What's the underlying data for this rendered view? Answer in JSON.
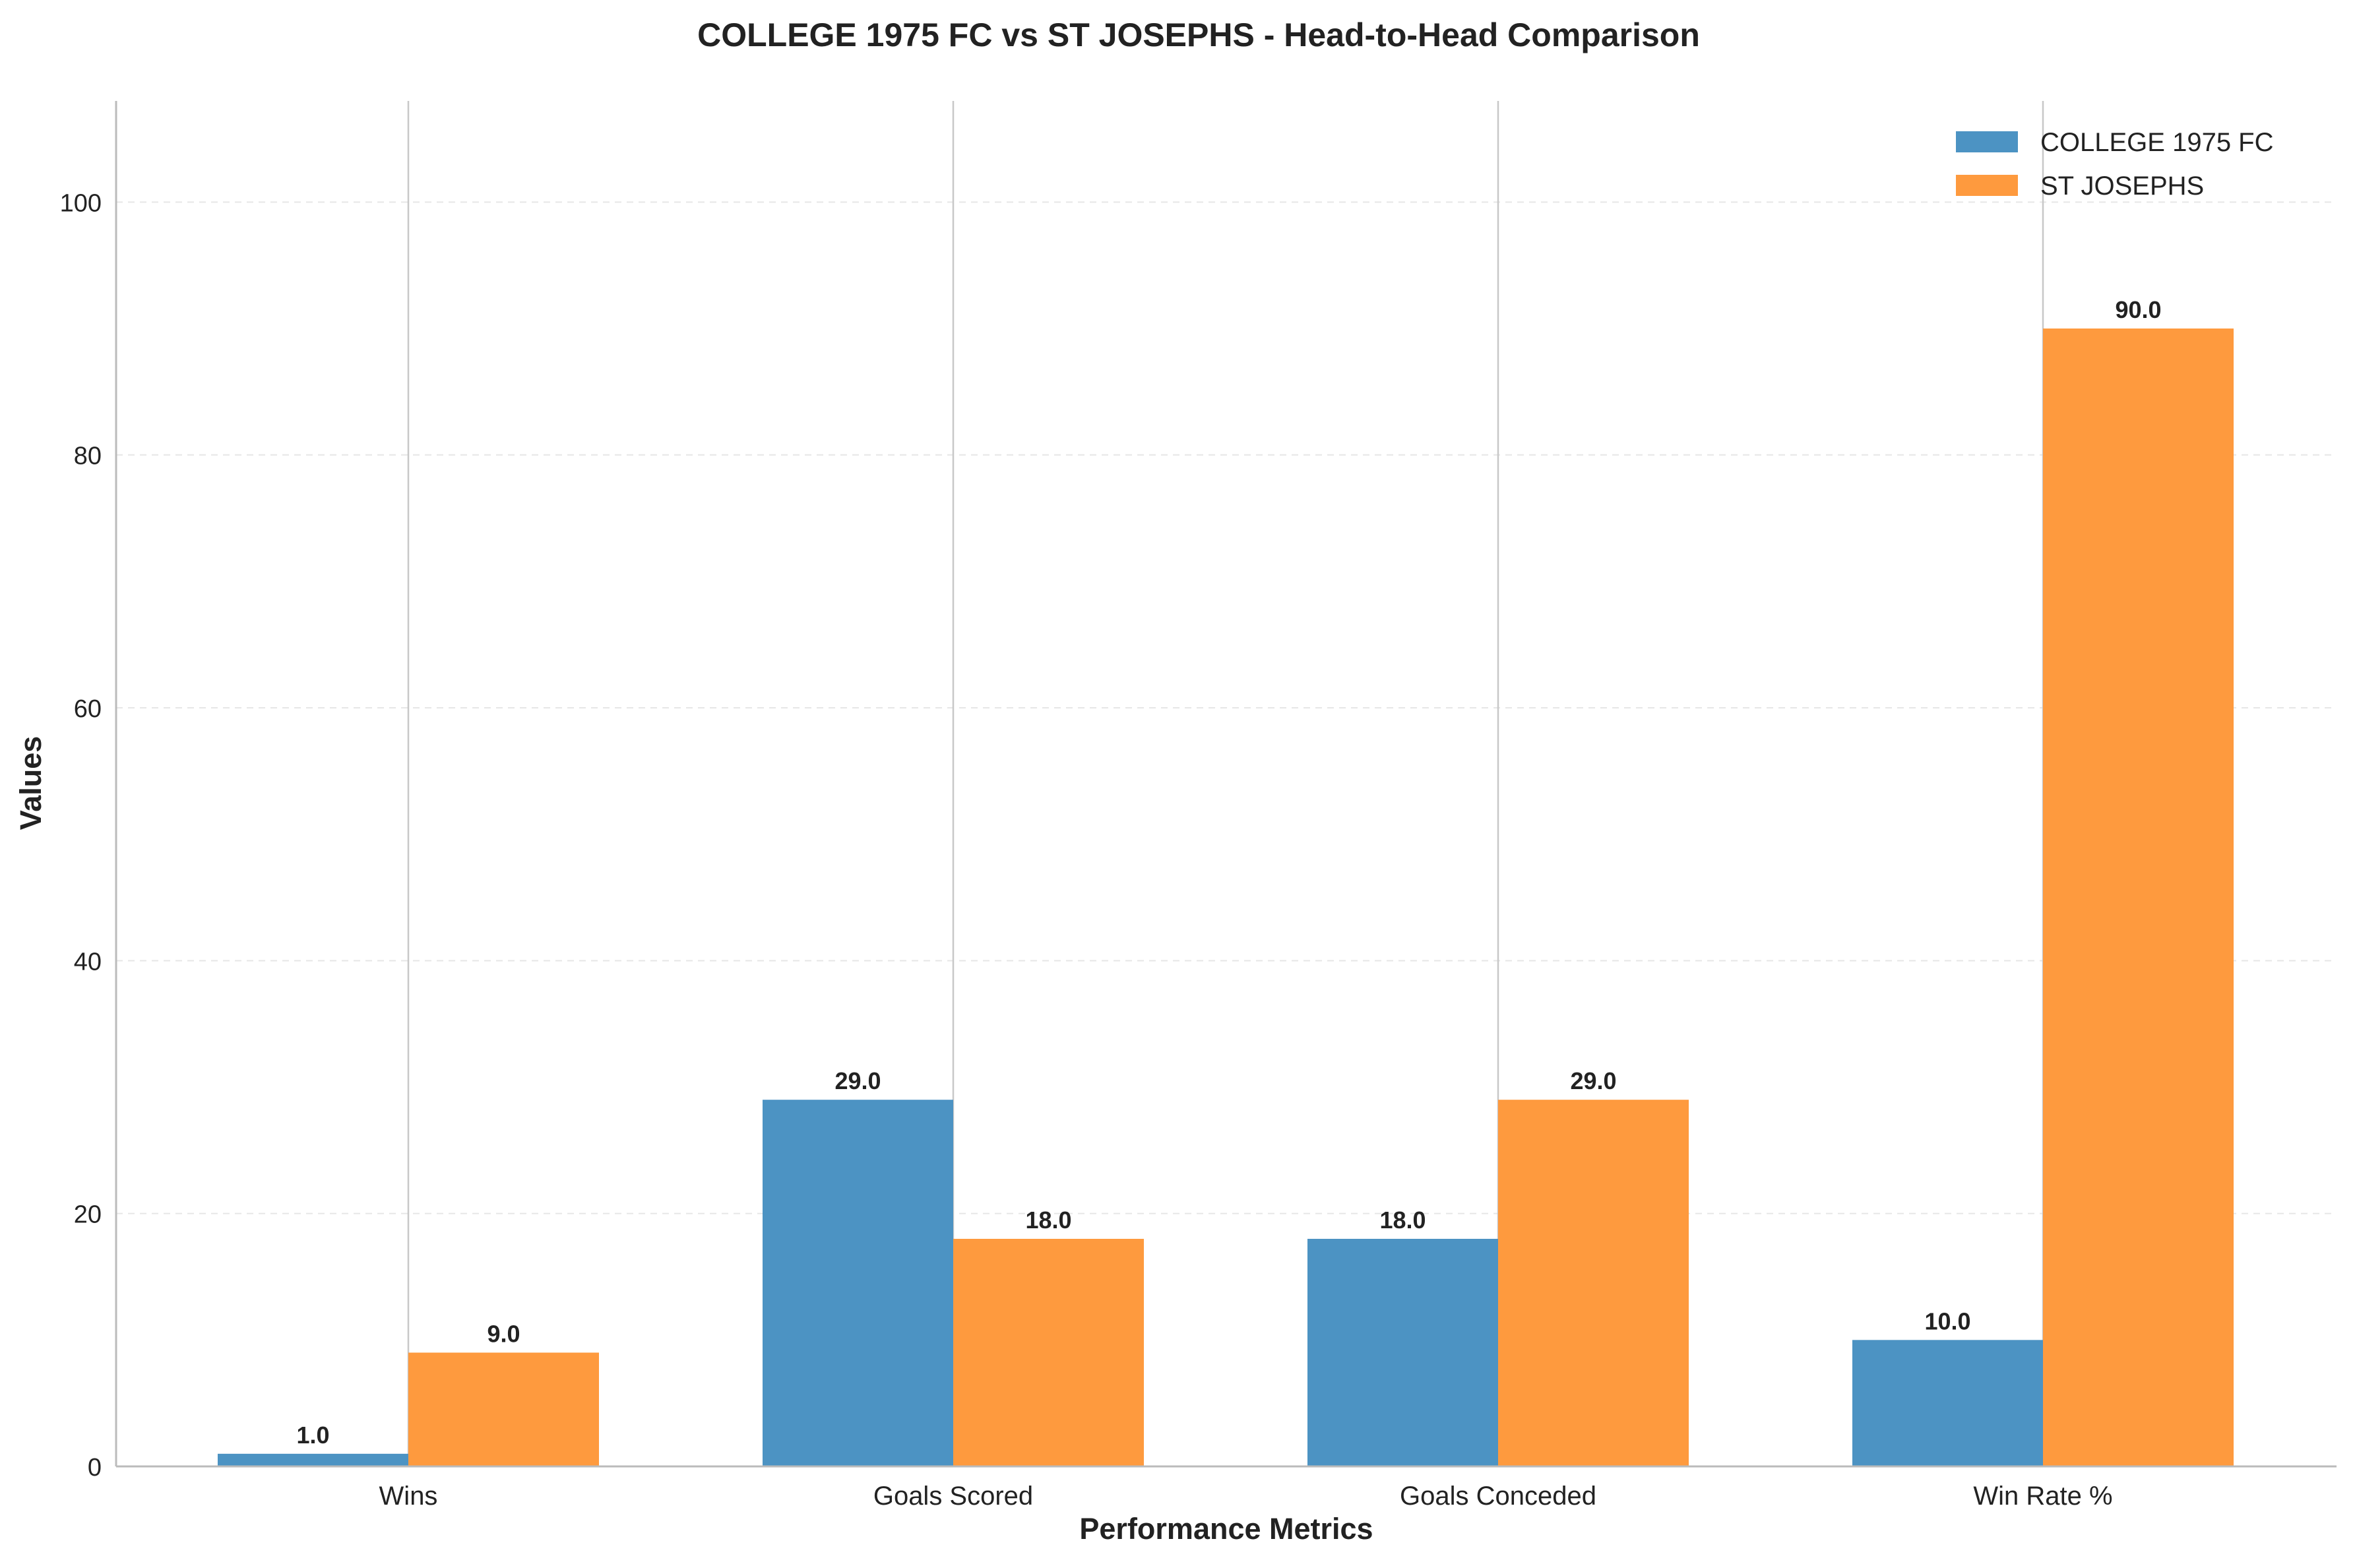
{
  "chart_data": {
    "type": "bar",
    "title": "COLLEGE 1975 FC vs ST JOSEPHS - Head-to-Head Comparison",
    "xlabel": "Performance Metrics",
    "ylabel": "Values",
    "categories": [
      "Wins",
      "Goals Scored",
      "Goals Conceded",
      "Win Rate %"
    ],
    "series": [
      {
        "name": "COLLEGE 1975 FC",
        "values": [
          1.0,
          29.0,
          18.0,
          10.0
        ],
        "color": "#4c93c3"
      },
      {
        "name": "ST JOSEPHS",
        "values": [
          9.0,
          18.0,
          29.0,
          90.0
        ],
        "color": "#fe9a3e"
      }
    ],
    "ylim": [
      0,
      108
    ],
    "yticks": [
      0,
      20,
      40,
      60,
      80,
      100
    ],
    "value_labels": [
      [
        "1.0",
        "29.0",
        "18.0",
        "10.0"
      ],
      [
        "9.0",
        "18.0",
        "29.0",
        "90.0"
      ]
    ],
    "grid": {
      "y": "dashed",
      "x": "solid"
    },
    "legend_position": "top-right"
  }
}
